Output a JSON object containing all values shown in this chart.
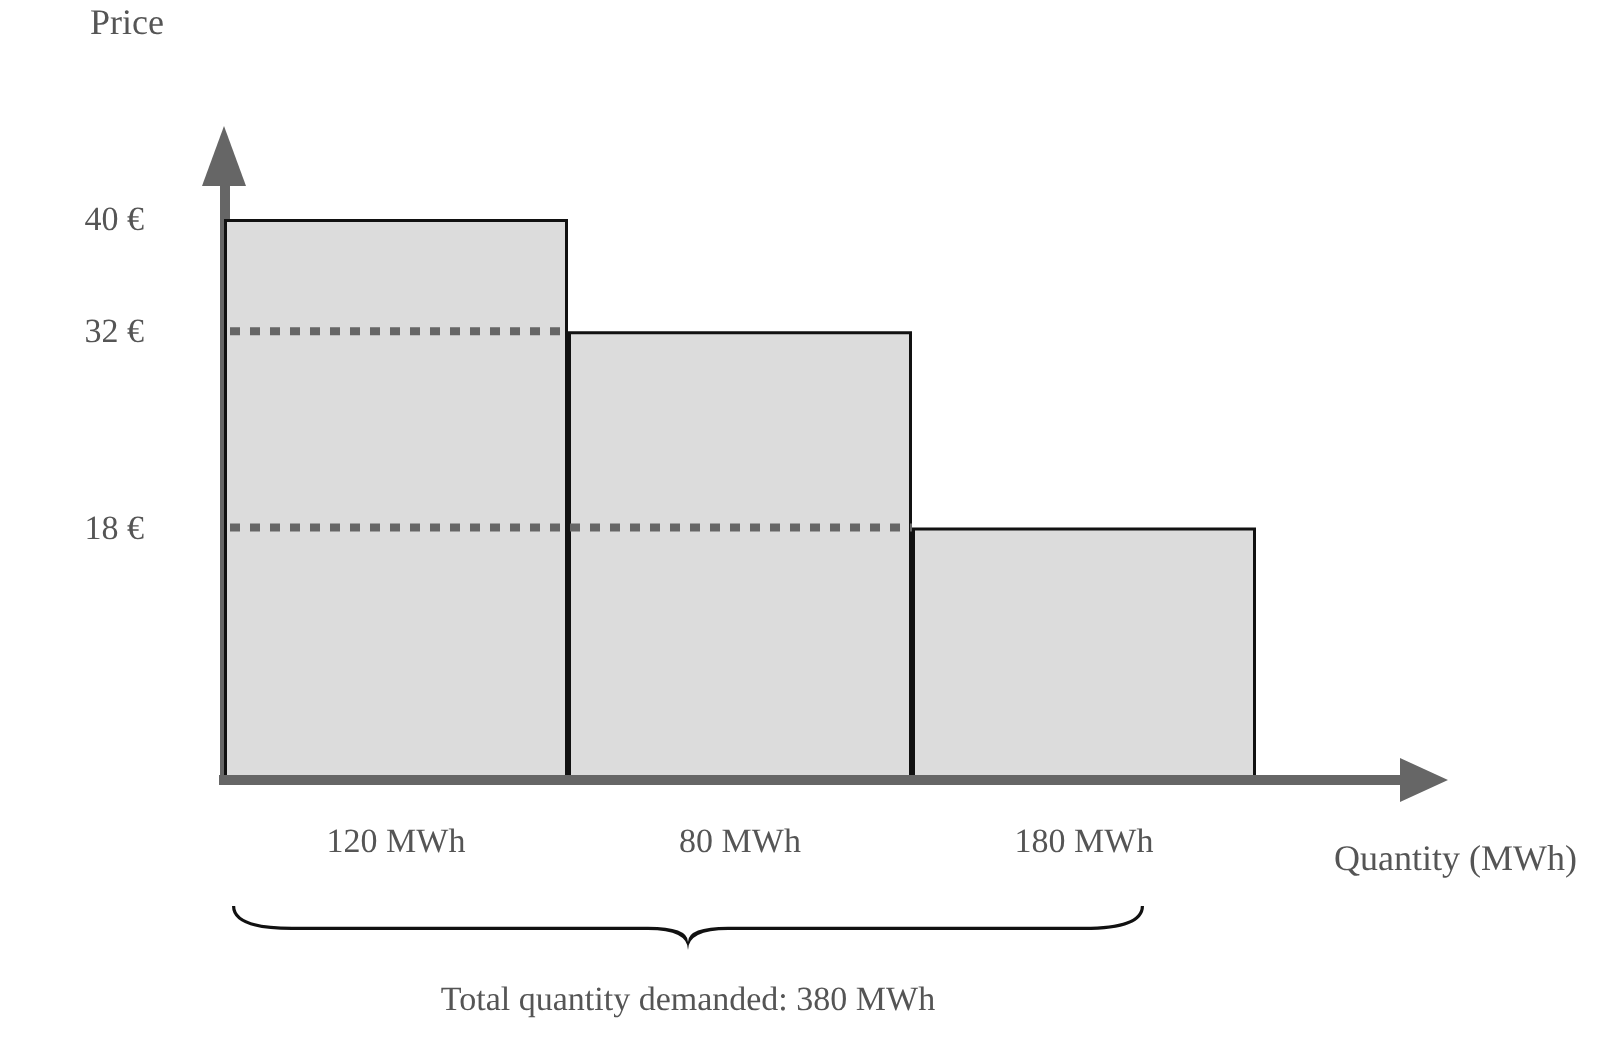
{
  "chart_data": {
    "type": "bar",
    "categories": [
      "120 MWh",
      "80 MWh",
      "180 MWh"
    ],
    "values": [
      40,
      32,
      18
    ],
    "color": "#dcdcdc",
    "ylim": [
      0,
      42.5
    ],
    "yticks": [
      {
        "value": 40,
        "label": "40 €"
      },
      {
        "value": 32,
        "label": "32 €"
      },
      {
        "value": 18,
        "label": "18 €"
      }
    ],
    "xlabel": "Quantity (MWh)",
    "ylabel": "Price",
    "ref_lines": [
      {
        "axis": "y",
        "value": 32,
        "color": "#666666",
        "line_style": "dotted"
      },
      {
        "axis": "y",
        "value": 18,
        "color": "#666666",
        "line_style": "dotted"
      }
    ],
    "annotations": [
      "Total quantity demanded: 380 MWh"
    ],
    "grid": false
  }
}
